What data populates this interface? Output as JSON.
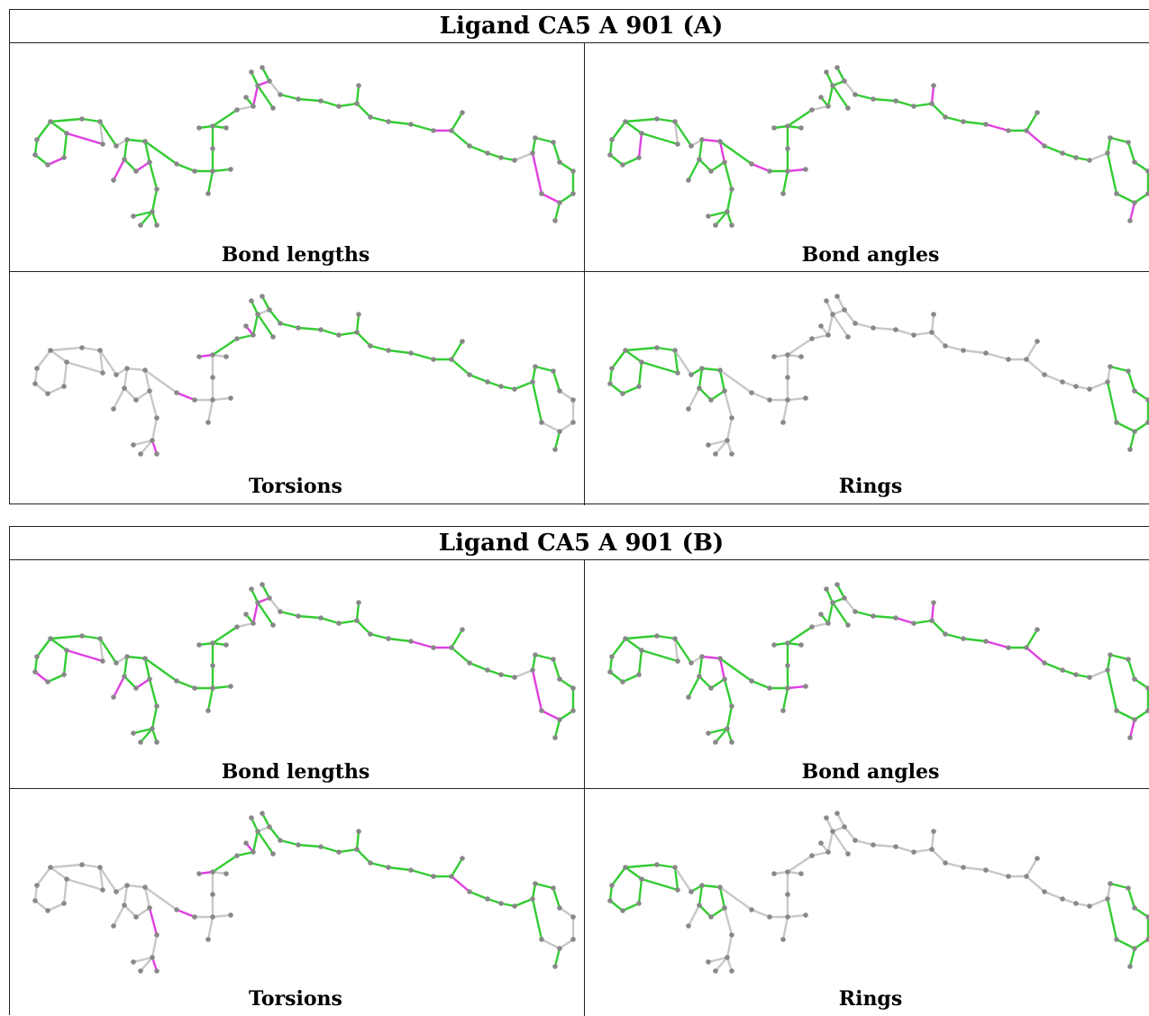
{
  "colors": {
    "ok_bond": "#33cc33",
    "outlier_bond": "#e040e0",
    "neutral_bond": "#c8c8c8",
    "atom": "#888888"
  },
  "blocks": [
    {
      "title": "Ligand CA5 A 901 (A)",
      "panels": [
        {
          "caption": "Bond lengths"
        },
        {
          "caption": "Bond angles"
        },
        {
          "caption": "Torsions"
        },
        {
          "caption": "Rings"
        }
      ]
    },
    {
      "title": "Ligand CA5 A 901 (B)",
      "panels": [
        {
          "caption": "Bond lengths"
        },
        {
          "caption": "Bond angles"
        },
        {
          "caption": "Torsions"
        },
        {
          "caption": "Rings"
        }
      ]
    }
  ]
}
